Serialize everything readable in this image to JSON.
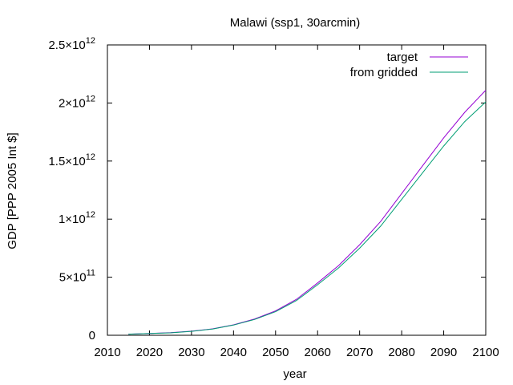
{
  "chart_data": {
    "type": "line",
    "title": "Malawi (ssp1, 30arcmin)",
    "xlabel": "year",
    "ylabel": "GDP [PPP 2005 Int $]",
    "xlim": [
      2010,
      2100
    ],
    "ylim": [
      0,
      2500000000000
    ],
    "x_ticks": [
      {
        "value": 2010,
        "label": "2010"
      },
      {
        "value": 2020,
        "label": "2020"
      },
      {
        "value": 2030,
        "label": "2030"
      },
      {
        "value": 2040,
        "label": "2040"
      },
      {
        "value": 2050,
        "label": "2050"
      },
      {
        "value": 2060,
        "label": "2060"
      },
      {
        "value": 2070,
        "label": "2070"
      },
      {
        "value": 2080,
        "label": "2080"
      },
      {
        "value": 2090,
        "label": "2090"
      },
      {
        "value": 2100,
        "label": "2100"
      }
    ],
    "y_ticks": [
      {
        "value": 0,
        "mantissa": "0",
        "exponent": ""
      },
      {
        "value": 500000000000,
        "mantissa": "5×10",
        "exponent": "11"
      },
      {
        "value": 1000000000000,
        "mantissa": "1×10",
        "exponent": "12"
      },
      {
        "value": 1500000000000,
        "mantissa": "1.5×10",
        "exponent": "12"
      },
      {
        "value": 2000000000000,
        "mantissa": "2×10",
        "exponent": "12"
      },
      {
        "value": 2500000000000,
        "mantissa": "2.5×10",
        "exponent": "12"
      }
    ],
    "grid": false,
    "legend_position": "top-right",
    "x": [
      2015,
      2020,
      2025,
      2030,
      2035,
      2040,
      2045,
      2050,
      2055,
      2060,
      2065,
      2070,
      2075,
      2080,
      2085,
      2090,
      2095,
      2100
    ],
    "series": [
      {
        "name": "target",
        "color": "#9400d3",
        "values": [
          10000000000,
          15000000000,
          22000000000,
          35000000000,
          55000000000,
          90000000000,
          140000000000,
          210000000000,
          310000000000,
          450000000000,
          600000000000,
          780000000000,
          980000000000,
          1220000000000,
          1460000000000,
          1700000000000,
          1920000000000,
          2110000000000
        ]
      },
      {
        "name": "from gridded",
        "color": "#009e73",
        "values": [
          10000000000,
          15000000000,
          21000000000,
          34000000000,
          54000000000,
          88000000000,
          136000000000,
          203000000000,
          300000000000,
          435000000000,
          580000000000,
          750000000000,
          940000000000,
          1170000000000,
          1400000000000,
          1630000000000,
          1840000000000,
          2010000000000
        ]
      }
    ]
  }
}
